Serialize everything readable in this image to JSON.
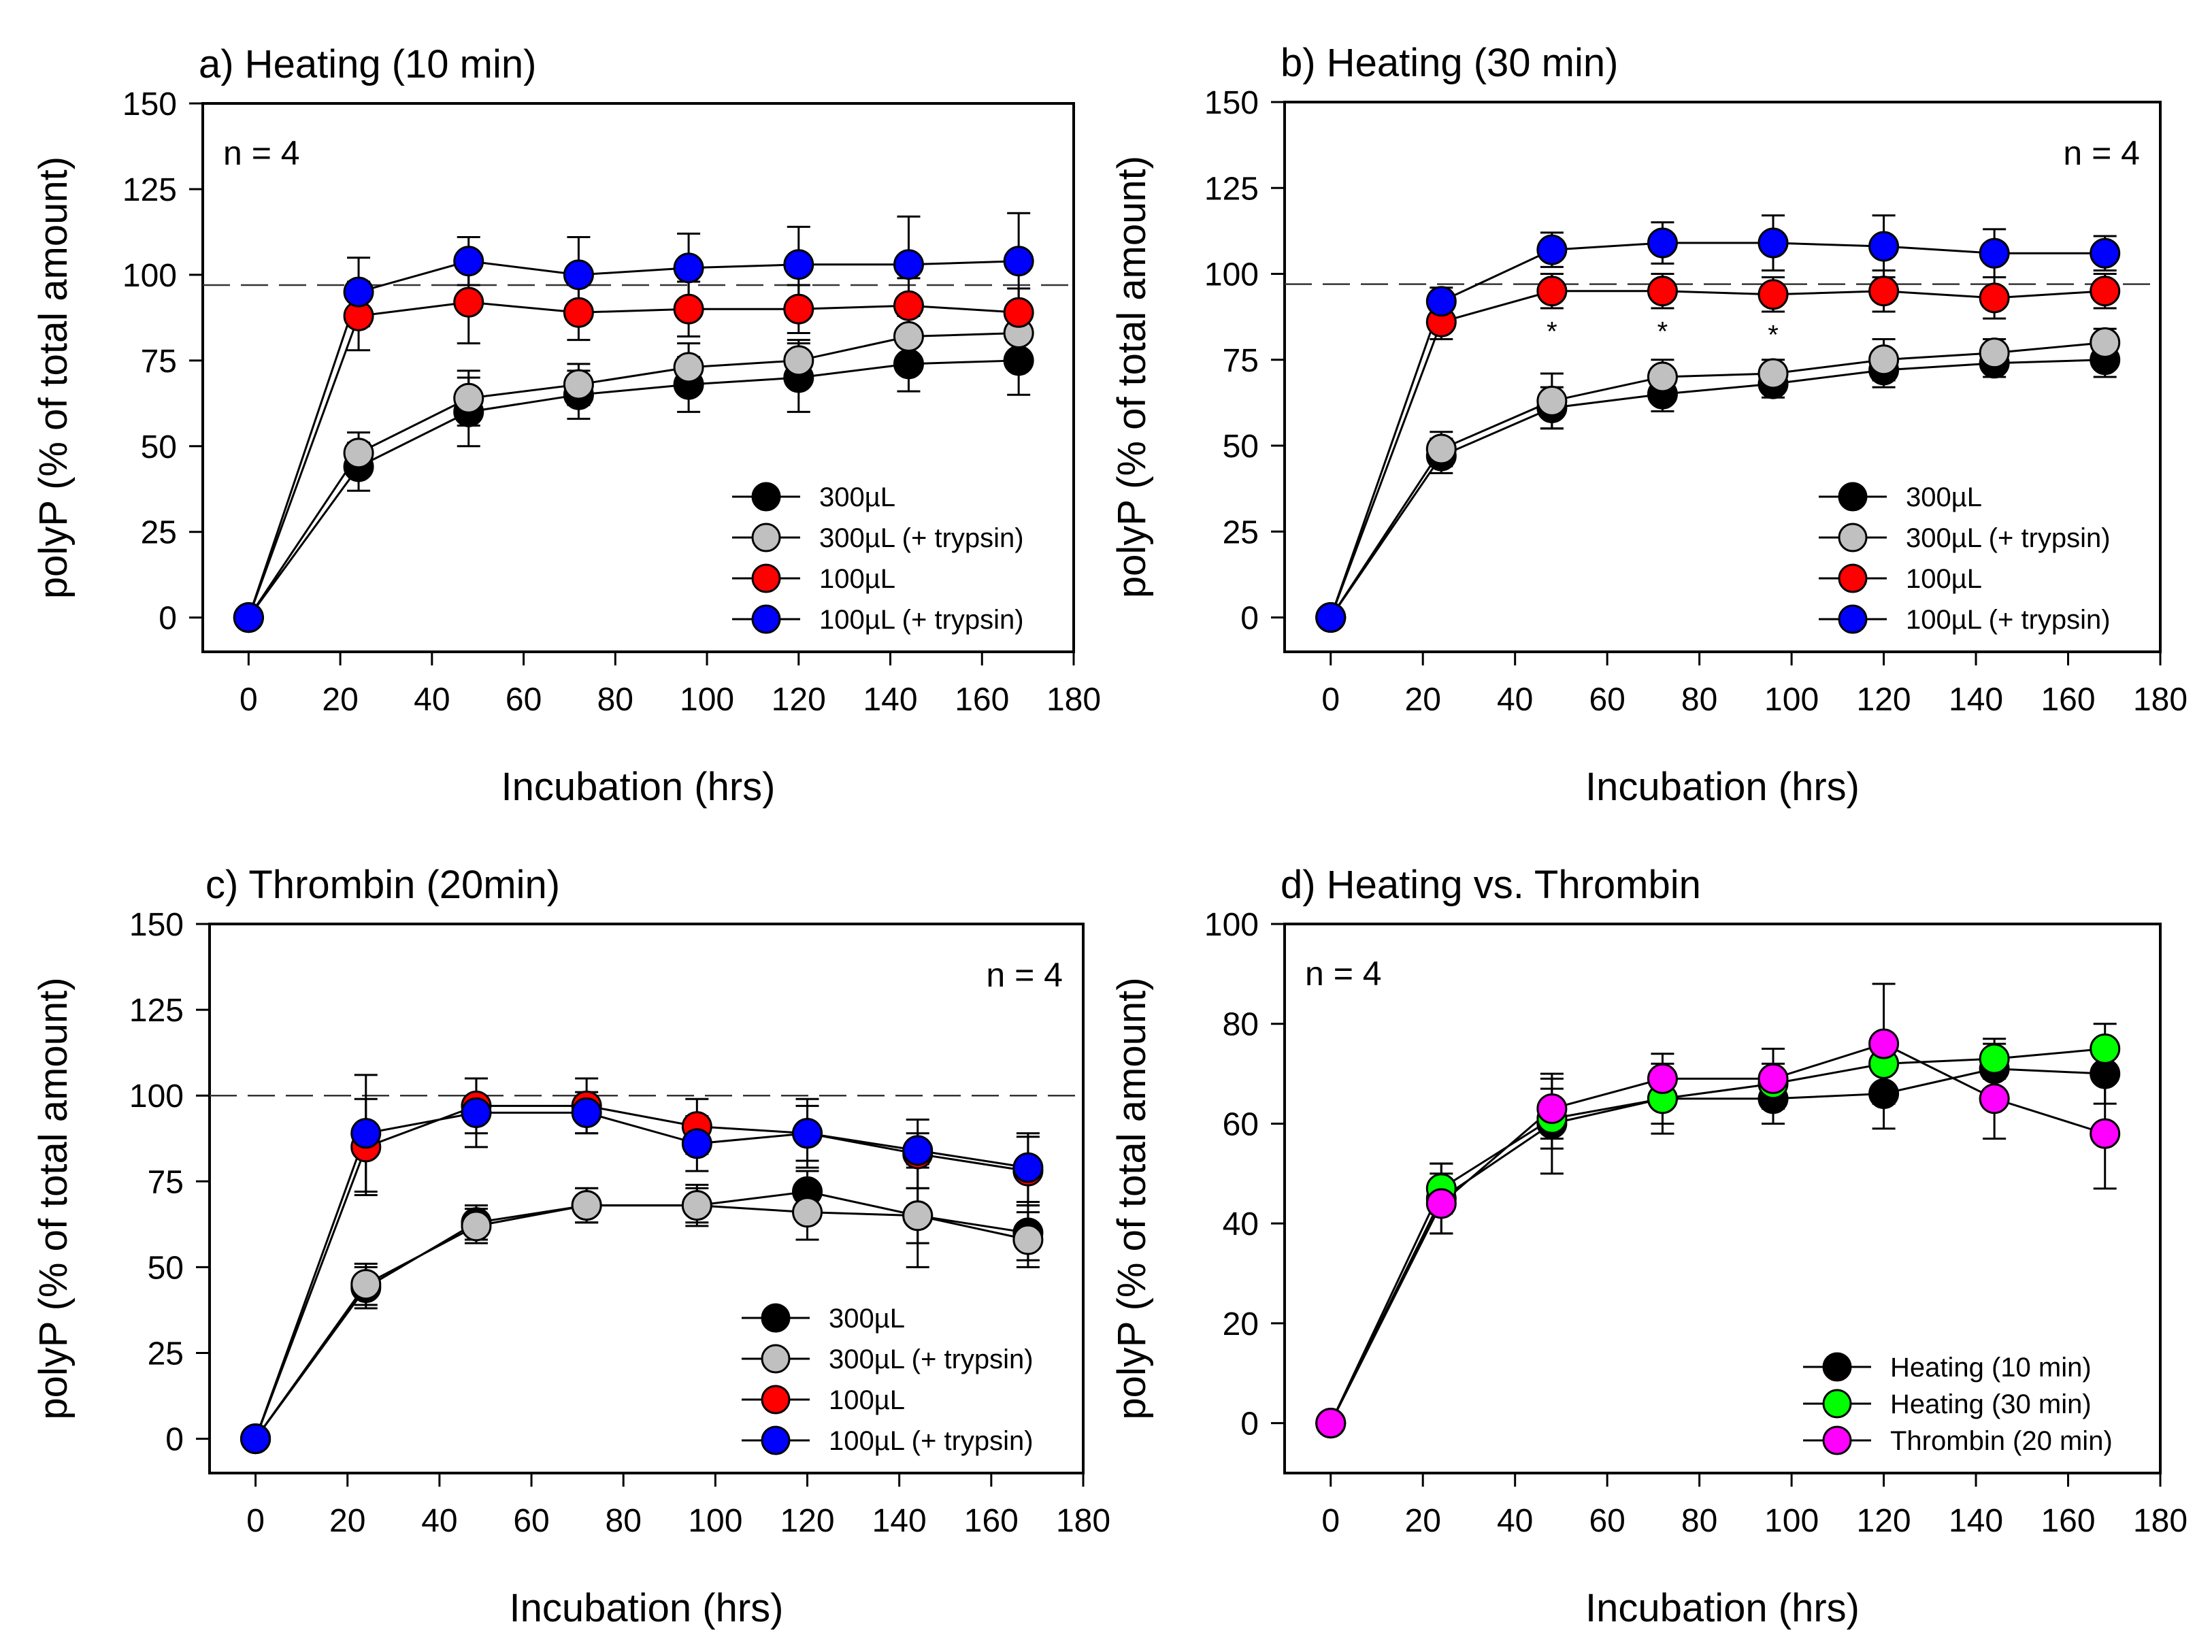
{
  "chart_data": [
    {
      "id": "a",
      "type": "line",
      "title": "a) Heating (10 min)",
      "xlabel": "Incubation (hrs)",
      "ylabel": "polyP (% of total amount)",
      "xlim": [
        -10,
        180
      ],
      "ylim": [
        -10,
        150
      ],
      "xticks": [
        0,
        20,
        40,
        60,
        80,
        100,
        120,
        140,
        160,
        180
      ],
      "yticks": [
        0,
        25,
        50,
        75,
        100,
        125,
        150
      ],
      "reference_line": 97,
      "annotation": "n = 4",
      "annotation_position": "top-left",
      "legend_position": "bottom-right",
      "x": [
        0,
        24,
        48,
        72,
        96,
        120,
        144,
        168
      ],
      "series": [
        {
          "name": "300µL",
          "color": "#000000",
          "values": [
            0,
            44,
            60,
            65,
            68,
            70,
            74,
            75
          ],
          "errors": [
            0,
            7,
            10,
            7,
            8,
            10,
            8,
            10
          ]
        },
        {
          "name": "300µL (+ trypsin)",
          "color": "#c0c0c0",
          "values": [
            0,
            48,
            64,
            68,
            73,
            75,
            82,
            83
          ],
          "errors": [
            0,
            6,
            8,
            6,
            7,
            6,
            6,
            6
          ]
        },
        {
          "name": "100µL",
          "color": "#ff0000",
          "values": [
            0,
            88,
            92,
            89,
            90,
            90,
            91,
            89
          ],
          "errors": [
            0,
            10,
            12,
            8,
            8,
            7,
            8,
            7
          ]
        },
        {
          "name": "100µL (+ trypsin)",
          "color": "#0000ff",
          "values": [
            0,
            95,
            104,
            100,
            102,
            103,
            103,
            104
          ],
          "errors": [
            0,
            10,
            7,
            11,
            10,
            11,
            14,
            14
          ]
        }
      ]
    },
    {
      "id": "b",
      "type": "line",
      "title": "b) Heating (30 min)",
      "xlabel": "Incubation (hrs)",
      "ylabel": "polyP (% of total amount)",
      "xlim": [
        -10,
        180
      ],
      "ylim": [
        -10,
        150
      ],
      "xticks": [
        0,
        20,
        40,
        60,
        80,
        100,
        120,
        140,
        160,
        180
      ],
      "yticks": [
        0,
        25,
        50,
        75,
        100,
        125,
        150
      ],
      "reference_line": 97,
      "annotation": "n = 4",
      "annotation_position": "top-right",
      "legend_position": "bottom-right",
      "significance": [
        {
          "x": 48,
          "y": 85,
          "label": "*"
        },
        {
          "x": 72,
          "y": 85,
          "label": "*"
        },
        {
          "x": 96,
          "y": 84,
          "label": "*"
        }
      ],
      "x": [
        0,
        24,
        48,
        72,
        96,
        120,
        144,
        168
      ],
      "series": [
        {
          "name": "300µL",
          "color": "#000000",
          "values": [
            0,
            47,
            61,
            65,
            68,
            72,
            74,
            75
          ],
          "errors": [
            0,
            5,
            6,
            5,
            4,
            5,
            4,
            5
          ]
        },
        {
          "name": "300µL (+ trypsin)",
          "color": "#c0c0c0",
          "values": [
            0,
            49,
            63,
            70,
            71,
            75,
            77,
            80
          ],
          "errors": [
            0,
            5,
            8,
            5,
            4,
            6,
            4,
            4
          ]
        },
        {
          "name": "100µL",
          "color": "#ff0000",
          "values": [
            0,
            86,
            95,
            95,
            94,
            95,
            93,
            95
          ],
          "errors": [
            0,
            5,
            5,
            5,
            5,
            6,
            6,
            5
          ]
        },
        {
          "name": "100µL (+ trypsin)",
          "color": "#0000ff",
          "values": [
            0,
            92,
            107,
            109,
            109,
            108,
            106,
            106
          ],
          "errors": [
            0,
            4,
            5,
            6,
            8,
            9,
            7,
            5
          ]
        }
      ]
    },
    {
      "id": "c",
      "type": "line",
      "title": "c) Thrombin (20min)",
      "xlabel": "Incubation (hrs)",
      "ylabel": "polyP (% of total amount)",
      "xlim": [
        -10,
        180
      ],
      "ylim": [
        -10,
        150
      ],
      "xticks": [
        0,
        20,
        40,
        60,
        80,
        100,
        120,
        140,
        160,
        180
      ],
      "yticks": [
        0,
        25,
        50,
        75,
        100,
        125,
        150
      ],
      "reference_line": 100,
      "annotation": "n = 4",
      "annotation_position": "top-right",
      "legend_position": "bottom-right",
      "x": [
        0,
        24,
        48,
        72,
        96,
        120,
        144,
        168
      ],
      "series": [
        {
          "name": "300µL",
          "color": "#000000",
          "values": [
            0,
            44,
            63,
            68,
            68,
            72,
            65,
            60
          ],
          "errors": [
            0,
            6,
            5,
            5,
            5,
            6,
            8,
            8
          ]
        },
        {
          "name": "300µL (+ trypsin)",
          "color": "#c0c0c0",
          "values": [
            0,
            45,
            62,
            68,
            68,
            66,
            65,
            58
          ],
          "errors": [
            0,
            6,
            5,
            5,
            6,
            8,
            15,
            8
          ]
        },
        {
          "name": "100µL",
          "color": "#ff0000",
          "values": [
            0,
            85,
            97,
            97,
            91,
            89,
            83,
            78
          ],
          "errors": [
            0,
            14,
            8,
            8,
            8,
            10,
            10,
            10
          ]
        },
        {
          "name": "100µL (+ trypsin)",
          "color": "#0000ff",
          "values": [
            0,
            89,
            95,
            95,
            86,
            89,
            84,
            79
          ],
          "errors": [
            0,
            17,
            10,
            6,
            8,
            8,
            5,
            10
          ]
        }
      ]
    },
    {
      "id": "d",
      "type": "line",
      "title": "d) Heating vs. Thrombin",
      "xlabel": "Incubation (hrs)",
      "ylabel": "polyP (% of total amount)",
      "xlim": [
        -10,
        180
      ],
      "ylim": [
        -10,
        100
      ],
      "xticks": [
        0,
        20,
        40,
        60,
        80,
        100,
        120,
        140,
        160,
        180
      ],
      "yticks": [
        0,
        20,
        40,
        60,
        80,
        100
      ],
      "annotation": "n = 4",
      "annotation_position": "top-left",
      "legend_position": "bottom-right",
      "x": [
        0,
        24,
        48,
        72,
        96,
        120,
        144,
        168
      ],
      "series": [
        {
          "name": "Heating (10 min)",
          "color": "#000000",
          "values": [
            0,
            45,
            60,
            65,
            65,
            66,
            71,
            70
          ],
          "errors": [
            0,
            7,
            10,
            7,
            5,
            7,
            5,
            6
          ]
        },
        {
          "name": "Heating (30 min)",
          "color": "#00ff00",
          "values": [
            0,
            47,
            61,
            65,
            68,
            72,
            73,
            75
          ],
          "errors": [
            0,
            5,
            6,
            5,
            4,
            5,
            4,
            5
          ]
        },
        {
          "name": "Thrombin (20 min)",
          "color": "#ff00ff",
          "values": [
            0,
            44,
            63,
            69,
            69,
            76,
            65,
            58
          ],
          "errors": [
            0,
            6,
            6,
            5,
            6,
            12,
            8,
            11
          ]
        }
      ]
    }
  ]
}
